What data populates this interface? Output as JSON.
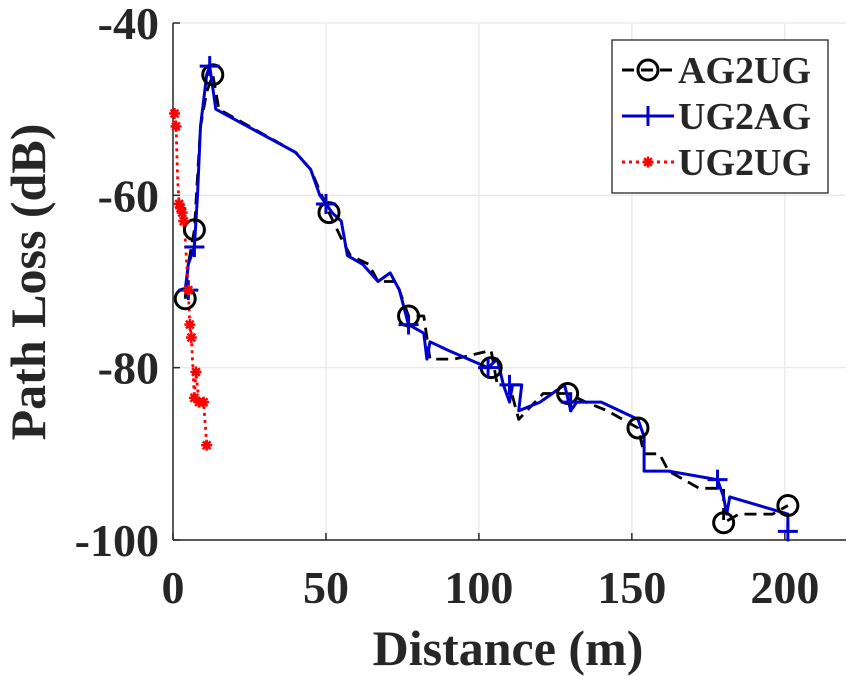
{
  "chart_data": {
    "type": "line",
    "title": "",
    "xlabel": "Distance (m)",
    "ylabel": "Path Loss (dB)",
    "xlim": [
      0,
      220
    ],
    "ylim": [
      -100,
      -40
    ],
    "xticks": [
      0,
      50,
      100,
      150,
      200
    ],
    "yticks": [
      -100,
      -80,
      -60,
      -40
    ],
    "xtick_labels": [
      "0",
      "50",
      "100",
      "150",
      "200"
    ],
    "ytick_labels": [
      "-100",
      "-80",
      "-60",
      "-40"
    ],
    "grid": true,
    "legend_position": "top-right",
    "series": [
      {
        "name": "AG2UG",
        "color": "#000000",
        "line_style": "dashed",
        "marker": "circle",
        "line_points": [
          [
            4,
            -72
          ],
          [
            5,
            -68
          ],
          [
            7,
            -64
          ],
          [
            9,
            -52
          ],
          [
            11,
            -48
          ],
          [
            13,
            -46
          ],
          [
            15,
            -50
          ],
          [
            40,
            -55
          ],
          [
            45,
            -57
          ],
          [
            51,
            -62
          ],
          [
            55,
            -65
          ],
          [
            58,
            -67
          ],
          [
            64,
            -68
          ],
          [
            67,
            -70
          ],
          [
            73,
            -70
          ],
          [
            77,
            -74
          ],
          [
            82,
            -74
          ],
          [
            84,
            -79
          ],
          [
            92,
            -79
          ],
          [
            104,
            -78
          ],
          [
            106,
            -82
          ],
          [
            110,
            -82
          ],
          [
            113,
            -86
          ],
          [
            121,
            -83
          ],
          [
            129,
            -83
          ],
          [
            135,
            -84
          ],
          [
            142,
            -85
          ],
          [
            152,
            -87
          ],
          [
            154,
            -90
          ],
          [
            159,
            -90
          ],
          [
            162,
            -92
          ],
          [
            172,
            -94
          ],
          [
            180,
            -94
          ],
          [
            180,
            -98
          ],
          [
            185,
            -97
          ],
          [
            196,
            -97
          ],
          [
            201,
            -96
          ]
        ],
        "marker_points": [
          [
            4,
            -72
          ],
          [
            7,
            -64
          ],
          [
            13,
            -46
          ],
          [
            51,
            -62
          ],
          [
            77,
            -74
          ],
          [
            104,
            -80
          ],
          [
            129,
            -83
          ],
          [
            152,
            -87
          ],
          [
            180,
            -98
          ],
          [
            201,
            -96
          ]
        ]
      },
      {
        "name": "UG2AG",
        "color": "#0000cc",
        "line_style": "solid",
        "marker": "plus",
        "line_points": [
          [
            4,
            -71
          ],
          [
            5,
            -68
          ],
          [
            7,
            -66
          ],
          [
            8,
            -60
          ],
          [
            9,
            -52
          ],
          [
            10,
            -49
          ],
          [
            11,
            -46
          ],
          [
            12,
            -45
          ],
          [
            14,
            -50
          ],
          [
            40,
            -55
          ],
          [
            45,
            -57
          ],
          [
            48,
            -60
          ],
          [
            50,
            -61
          ],
          [
            52,
            -62
          ],
          [
            55,
            -63
          ],
          [
            57,
            -67
          ],
          [
            62,
            -68
          ],
          [
            67,
            -70
          ],
          [
            71,
            -69
          ],
          [
            74,
            -71
          ],
          [
            77,
            -75
          ],
          [
            82,
            -76
          ],
          [
            83,
            -79
          ],
          [
            84,
            -77
          ],
          [
            90,
            -78
          ],
          [
            103,
            -80
          ],
          [
            106,
            -79
          ],
          [
            108,
            -82
          ],
          [
            110,
            -84
          ],
          [
            111,
            -82
          ],
          [
            114,
            -82
          ],
          [
            113,
            -85
          ],
          [
            120,
            -84
          ],
          [
            128,
            -82
          ],
          [
            130,
            -85
          ],
          [
            132,
            -84
          ],
          [
            140,
            -84
          ],
          [
            152,
            -86
          ],
          [
            154,
            -88
          ],
          [
            154,
            -92
          ],
          [
            162,
            -92
          ],
          [
            178,
            -93
          ],
          [
            180,
            -95
          ],
          [
            181,
            -97
          ],
          [
            182,
            -95
          ],
          [
            201,
            -97
          ],
          [
            201,
            -99
          ]
        ],
        "marker_points": [
          [
            5,
            -71
          ],
          [
            7,
            -66
          ],
          [
            12,
            -45
          ],
          [
            50,
            -61
          ],
          [
            77,
            -75
          ],
          [
            103,
            -80
          ],
          [
            110,
            -82
          ],
          [
            130,
            -84
          ],
          [
            178,
            -93
          ],
          [
            201,
            -99
          ]
        ]
      },
      {
        "name": "UG2UG",
        "color": "#ff0000",
        "line_style": "dotted",
        "marker": "asterisk",
        "line_points": [
          [
            0.5,
            -50.5
          ],
          [
            1,
            -52
          ],
          [
            1.5,
            -58
          ],
          [
            2,
            -61
          ],
          [
            2.5,
            -61.5
          ],
          [
            3,
            -62
          ],
          [
            3.5,
            -63
          ],
          [
            4,
            -65
          ],
          [
            5,
            -71
          ],
          [
            5.5,
            -75
          ],
          [
            6,
            -76.5
          ],
          [
            6.5,
            -80
          ],
          [
            7,
            -83.5
          ],
          [
            7.5,
            -80.5
          ],
          [
            8.5,
            -84
          ],
          [
            10,
            -84
          ],
          [
            11,
            -89
          ]
        ],
        "marker_points": [
          [
            0.5,
            -50.5
          ],
          [
            1,
            -52
          ],
          [
            2,
            -61
          ],
          [
            2.5,
            -61.5
          ],
          [
            3,
            -62
          ],
          [
            3.5,
            -63
          ],
          [
            5,
            -71
          ],
          [
            5.5,
            -75
          ],
          [
            6,
            -76.5
          ],
          [
            7,
            -83.5
          ],
          [
            7.5,
            -80.5
          ],
          [
            8.5,
            -84
          ],
          [
            10,
            -84
          ],
          [
            11,
            -89
          ]
        ]
      }
    ]
  }
}
